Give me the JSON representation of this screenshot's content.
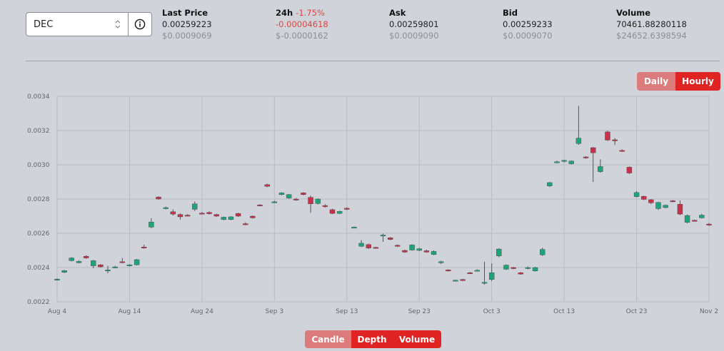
{
  "selector": {
    "value": "DEC"
  },
  "stats": [
    {
      "label": "Last Price",
      "value": "0.00259223",
      "usd": "$0.0009069"
    },
    {
      "label": "24h",
      "change": "-1.75%",
      "value": "-0.00004618",
      "usd": "$-0.0000162"
    },
    {
      "label": "Ask",
      "value": "0.00259801",
      "usd": "$0.0009090"
    },
    {
      "label": "Bid",
      "value": "0.00259233",
      "usd": "$0.0009070"
    },
    {
      "label": "Volume",
      "value": "70461.88280118",
      "usd": "$24652.6398594"
    }
  ],
  "interval_toggle": {
    "daily": "Daily",
    "hourly": "Hourly",
    "active": "Hourly"
  },
  "view_toggle": {
    "candle": "Candle",
    "depth": "Depth",
    "volume": "Volume",
    "active": "Depth"
  },
  "colors": {
    "up": "#1fa47a",
    "down": "#c9304a",
    "accent": "#e02424"
  },
  "chart_data": {
    "type": "candlestick",
    "x_ticks": [
      "Aug 4",
      "Aug 14",
      "Aug 24",
      "Sep 3",
      "Sep 13",
      "Sep 23",
      "Oct 3",
      "Oct 13",
      "Oct 23",
      "Nov 2"
    ],
    "y_ticks": [
      "0.0022",
      "0.0024",
      "0.0026",
      "0.0028",
      "0.0030",
      "0.0032",
      "0.0034"
    ],
    "ylim": [
      0.0022,
      0.0034
    ],
    "grid": true,
    "candles": [
      [
        0,
        0.002328,
        0.002332,
        0.002338,
        0.002324
      ],
      [
        1,
        0.002372,
        0.002382,
        0.002386,
        0.002368
      ],
      [
        2,
        0.00244,
        0.002456,
        0.00246,
        0.002436
      ],
      [
        3,
        0.002428,
        0.002436,
        0.002442,
        0.002424
      ],
      [
        4,
        0.002466,
        0.002456,
        0.002472,
        0.002452
      ],
      [
        5,
        0.00241,
        0.00244,
        0.002444,
        0.002396
      ],
      [
        6,
        0.002416,
        0.002404,
        0.00242,
        0.0024
      ],
      [
        7,
        0.002382,
        0.002386,
        0.00241,
        0.002366
      ],
      [
        8,
        0.0024,
        0.002404,
        0.00241,
        0.002396
      ],
      [
        9,
        0.002434,
        0.00243,
        0.002456,
        0.002426
      ],
      [
        10,
        0.00241,
        0.002416,
        0.00242,
        0.002406
      ],
      [
        11,
        0.002416,
        0.002446,
        0.00245,
        0.002412
      ],
      [
        12,
        0.00252,
        0.002514,
        0.002534,
        0.00251
      ],
      [
        13,
        0.002636,
        0.002666,
        0.002688,
        0.00263
      ],
      [
        14,
        0.002812,
        0.0028,
        0.002816,
        0.002796
      ],
      [
        15,
        0.002744,
        0.00275,
        0.002756,
        0.00274
      ],
      [
        16,
        0.002726,
        0.002712,
        0.00274,
        0.002704
      ],
      [
        17,
        0.00271,
        0.002696,
        0.002716,
        0.00268
      ],
      [
        18,
        0.002706,
        0.002704,
        0.002712,
        0.0027
      ],
      [
        19,
        0.00274,
        0.002772,
        0.002786,
        0.00273
      ],
      [
        20,
        0.002718,
        0.002716,
        0.002724,
        0.002712
      ],
      [
        21,
        0.002722,
        0.002714,
        0.002728,
        0.00271
      ],
      [
        22,
        0.00271,
        0.0027,
        0.002714,
        0.002696
      ],
      [
        23,
        0.00268,
        0.002694,
        0.002698,
        0.002676
      ],
      [
        24,
        0.00268,
        0.002696,
        0.0027,
        0.002676
      ],
      [
        25,
        0.002716,
        0.0027,
        0.00272,
        0.002696
      ],
      [
        26,
        0.002656,
        0.00265,
        0.002664,
        0.002648
      ],
      [
        27,
        0.0027,
        0.00269,
        0.002704,
        0.002686
      ],
      [
        28,
        0.002766,
        0.002764,
        0.00277,
        0.00276
      ],
      [
        29,
        0.002884,
        0.002874,
        0.00289,
        0.00287
      ],
      [
        30,
        0.002782,
        0.002784,
        0.00279,
        0.002776
      ],
      [
        31,
        0.002826,
        0.002836,
        0.00284,
        0.002822
      ],
      [
        32,
        0.002806,
        0.002826,
        0.00283,
        0.002802
      ],
      [
        33,
        0.0028,
        0.002796,
        0.002806,
        0.00279
      ],
      [
        34,
        0.002836,
        0.002826,
        0.00284,
        0.002822
      ],
      [
        35,
        0.00281,
        0.002772,
        0.00282,
        0.00272
      ],
      [
        36,
        0.002774,
        0.0028,
        0.002804,
        0.002768
      ],
      [
        37,
        0.002762,
        0.002756,
        0.00277,
        0.00275
      ],
      [
        38,
        0.002738,
        0.002716,
        0.002744,
        0.002712
      ],
      [
        39,
        0.002716,
        0.002728,
        0.002732,
        0.002712
      ],
      [
        40,
        0.002746,
        0.00274,
        0.002752,
        0.002736
      ],
      [
        41,
        0.002636,
        0.002636,
        0.00264,
        0.002632
      ],
      [
        42,
        0.002524,
        0.002542,
        0.00256,
        0.00252
      ],
      [
        43,
        0.002534,
        0.002514,
        0.00254,
        0.002508
      ],
      [
        44,
        0.002518,
        0.002514,
        0.002522,
        0.00251
      ],
      [
        45,
        0.002586,
        0.00259,
        0.002598,
        0.00255
      ],
      [
        46,
        0.002574,
        0.002564,
        0.002578,
        0.00256
      ],
      [
        47,
        0.00253,
        0.002526,
        0.002534,
        0.00252
      ],
      [
        48,
        0.0025,
        0.00249,
        0.002504,
        0.002486
      ],
      [
        49,
        0.002502,
        0.002532,
        0.002536,
        0.002498
      ],
      [
        50,
        0.0025,
        0.00251,
        0.002514,
        0.002496
      ],
      [
        51,
        0.002498,
        0.00249,
        0.002504,
        0.002486
      ],
      [
        52,
        0.002476,
        0.002494,
        0.0025,
        0.002472
      ],
      [
        53,
        0.00243,
        0.002434,
        0.00244,
        0.00242
      ],
      [
        54,
        0.002386,
        0.00238,
        0.00239,
        0.002376
      ],
      [
        55,
        0.002326,
        0.002326,
        0.00233,
        0.002322
      ],
      [
        56,
        0.00233,
        0.002324,
        0.002334,
        0.00232
      ],
      [
        57,
        0.00237,
        0.002368,
        0.002374,
        0.002362
      ],
      [
        58,
        0.002384,
        0.002384,
        0.00239,
        0.00238
      ],
      [
        59,
        0.00231,
        0.002314,
        0.002434,
        0.0023
      ],
      [
        60,
        0.00233,
        0.00237,
        0.002424,
        0.00232
      ],
      [
        61,
        0.002468,
        0.002508,
        0.002512,
        0.00246
      ],
      [
        62,
        0.00239,
        0.002414,
        0.002418,
        0.002386
      ],
      [
        63,
        0.0024,
        0.002396,
        0.002404,
        0.00239
      ],
      [
        64,
        0.00237,
        0.002362,
        0.002374,
        0.002358
      ],
      [
        65,
        0.002394,
        0.0024,
        0.002406,
        0.00239
      ],
      [
        66,
        0.00238,
        0.0024,
        0.002404,
        0.002376
      ],
      [
        67,
        0.002474,
        0.002506,
        0.002516,
        0.002468
      ],
      [
        68,
        0.002876,
        0.002896,
        0.0029,
        0.00287
      ],
      [
        69,
        0.003016,
        0.003018,
        0.003024,
        0.00301
      ],
      [
        70,
        0.00302,
        0.003026,
        0.00303,
        0.003014
      ],
      [
        71,
        0.003006,
        0.003022,
        0.003026,
        0.003002
      ],
      [
        72,
        0.003124,
        0.003156,
        0.003344,
        0.003116
      ],
      [
        73,
        0.003046,
        0.003042,
        0.00305,
        0.003036
      ],
      [
        74,
        0.0031,
        0.00307,
        0.003104,
        0.0029
      ],
      [
        75,
        0.00296,
        0.00299,
        0.003032,
        0.002954
      ],
      [
        76,
        0.003192,
        0.003144,
        0.0032,
        0.00314
      ],
      [
        77,
        0.003146,
        0.00314,
        0.003156,
        0.003116
      ],
      [
        78,
        0.003084,
        0.00308,
        0.00309,
        0.003076
      ],
      [
        79,
        0.002986,
        0.002952,
        0.00299,
        0.002946
      ],
      [
        80,
        0.002814,
        0.002838,
        0.002846,
        0.00281
      ],
      [
        81,
        0.002816,
        0.002798,
        0.00282,
        0.002794
      ],
      [
        82,
        0.002796,
        0.002778,
        0.0028,
        0.00277
      ],
      [
        83,
        0.002744,
        0.00278,
        0.002784,
        0.002736
      ],
      [
        84,
        0.00275,
        0.002764,
        0.002768,
        0.002746
      ],
      [
        85,
        0.00279,
        0.002786,
        0.002794,
        0.002782
      ],
      [
        86,
        0.00277,
        0.002712,
        0.002792,
        0.002706
      ],
      [
        87,
        0.002664,
        0.002704,
        0.00271,
        0.002658
      ],
      [
        88,
        0.002676,
        0.002672,
        0.00268,
        0.002668
      ],
      [
        89,
        0.00269,
        0.002706,
        0.002714,
        0.002686
      ],
      [
        90,
        0.002654,
        0.00265,
        0.00266,
        0.002644
      ]
    ]
  }
}
